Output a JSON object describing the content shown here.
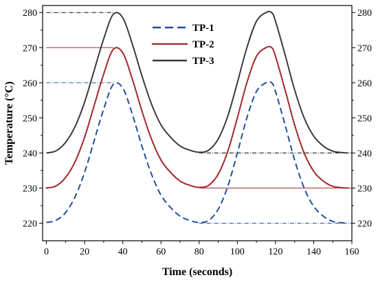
{
  "chart_data": {
    "type": "line",
    "title": "",
    "xlabel": "Time (seconds)",
    "ylabel": "Temperature (°C)",
    "xlim": [
      -2,
      160
    ],
    "ylim": [
      215,
      282
    ],
    "xticks": [
      0,
      20,
      40,
      60,
      80,
      100,
      120,
      140,
      160
    ],
    "yticks": [
      220,
      230,
      240,
      250,
      260,
      270,
      280
    ],
    "xtick_labels": [
      "0",
      "20",
      "40",
      "60",
      "80",
      "100",
      "120",
      "140",
      "160"
    ],
    "ytick_labels_left": [
      "220",
      "230",
      "240",
      "250",
      "260",
      "270",
      "280"
    ],
    "ytick_labels_right": [
      "220",
      "230",
      "240",
      "250",
      "260",
      "270",
      "280"
    ],
    "grid": false,
    "legend_position": "top-center",
    "series": [
      {
        "name": "TP-1",
        "color": "#1f4e9e",
        "style": "dashed",
        "x": [
          0,
          5,
          10,
          15,
          20,
          25,
          30,
          35,
          40,
          45,
          50,
          55,
          60,
          65,
          70,
          75,
          80,
          85,
          90,
          95,
          100,
          105,
          110,
          115,
          118,
          120,
          125,
          130,
          135,
          140,
          145,
          150,
          155,
          158
        ],
        "y": [
          220.2,
          220.8,
          223,
          227.5,
          234.5,
          243.5,
          252.5,
          259.5,
          258.5,
          251,
          242,
          234,
          228,
          224.5,
          222,
          220.8,
          220.2,
          220.8,
          224,
          230.5,
          240,
          250,
          257.5,
          260,
          260,
          257.5,
          248,
          238,
          230,
          224.8,
          222,
          220.5,
          220.1,
          220
        ]
      },
      {
        "name": "TP-2",
        "color": "#a0282c",
        "style": "dotted",
        "x": [
          0,
          5,
          10,
          15,
          20,
          25,
          30,
          35,
          40,
          45,
          50,
          55,
          60,
          65,
          70,
          75,
          80,
          85,
          90,
          95,
          100,
          105,
          110,
          115,
          118,
          120,
          125,
          130,
          135,
          140,
          145,
          150,
          155,
          158
        ],
        "y": [
          230,
          230.6,
          233,
          237.5,
          244.5,
          253.5,
          262.5,
          269.5,
          268.5,
          261,
          252,
          244,
          238,
          234.5,
          232,
          230.8,
          230.2,
          230.8,
          234,
          240.5,
          250,
          260,
          267.5,
          270,
          270,
          267.5,
          258,
          248,
          240,
          234.8,
          232,
          230.5,
          230.1,
          230
        ]
      },
      {
        "name": "TP-3",
        "color": "#3a3a3a",
        "style": "solid",
        "x": [
          0,
          5,
          10,
          15,
          20,
          25,
          30,
          35,
          40,
          45,
          50,
          55,
          60,
          65,
          70,
          75,
          80,
          85,
          90,
          95,
          100,
          105,
          110,
          115,
          118,
          120,
          125,
          130,
          135,
          140,
          145,
          150,
          155,
          158
        ],
        "y": [
          240,
          240.6,
          243,
          247.5,
          254.5,
          263.5,
          272.5,
          279.5,
          278.5,
          271,
          262,
          254,
          248,
          244.5,
          242,
          240.8,
          240.2,
          240.8,
          244,
          250.5,
          260,
          270,
          277.5,
          280,
          280,
          277.5,
          268,
          258,
          250,
          244.8,
          242,
          240.5,
          240.1,
          240
        ]
      }
    ],
    "reference_lines": [
      {
        "color": "#000000",
        "style": "dash-dot",
        "x": [
          0,
          35
        ],
        "y": 280
      },
      {
        "color": "#a0282c",
        "style": "solid",
        "x": [
          0,
          35
        ],
        "y": 270
      },
      {
        "color": "#1f4e9e",
        "style": "dash-dot",
        "x": [
          0,
          35
        ],
        "y": 260
      },
      {
        "color": "#000000",
        "style": "dash-dot",
        "x": [
          80,
          160
        ],
        "y": 240
      },
      {
        "color": "#a0282c",
        "style": "solid",
        "x": [
          80,
          160
        ],
        "y": 230
      },
      {
        "color": "#1f4e9e",
        "style": "dash-dot",
        "x": [
          80,
          160
        ],
        "y": 220
      }
    ]
  }
}
